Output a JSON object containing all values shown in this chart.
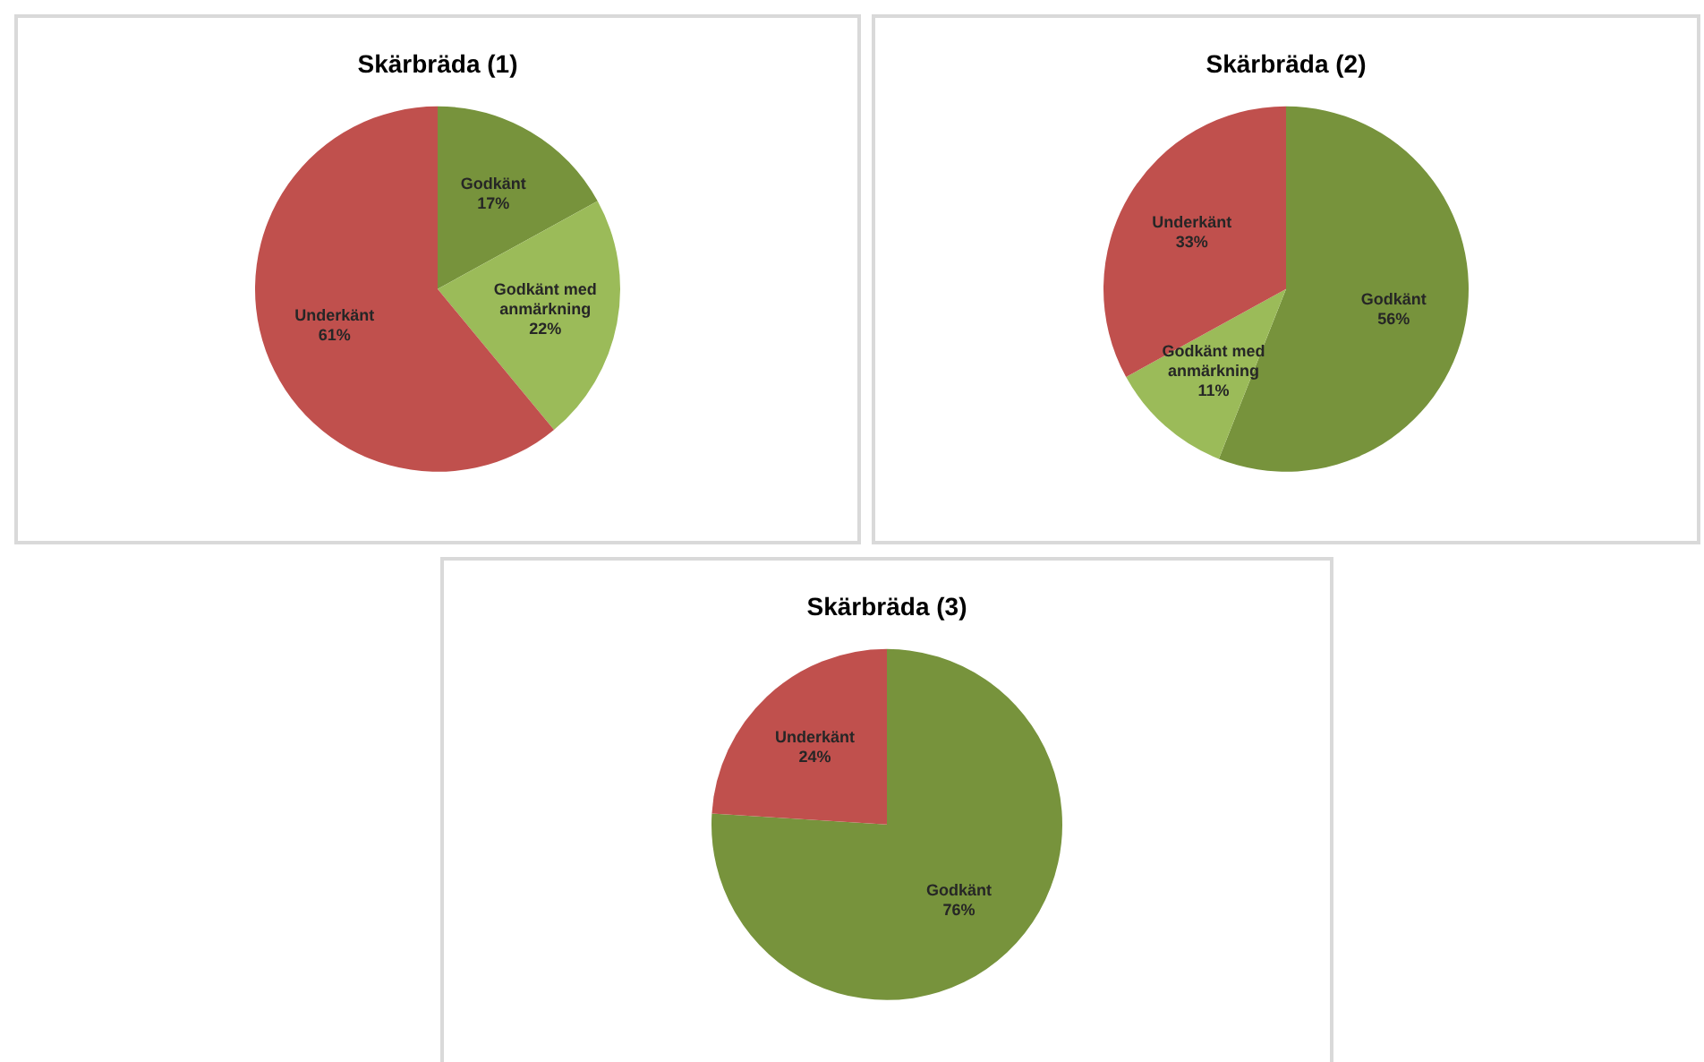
{
  "chart_data": [
    {
      "type": "pie",
      "title": "Skärbräda (1)",
      "categories": [
        "Godkänt",
        "Godkänt med anmärkning",
        "Underkänt"
      ],
      "values": [
        17,
        22,
        61
      ],
      "colors": [
        "#77933c",
        "#9bbb59",
        "#c0504d"
      ],
      "value_labels": [
        "17%",
        "22%",
        "61%"
      ]
    },
    {
      "type": "pie",
      "title": "Skärbräda (2)",
      "categories": [
        "Godkänt",
        "Godkänt med anmärkning",
        "Underkänt"
      ],
      "values": [
        56,
        11,
        33
      ],
      "colors": [
        "#77933c",
        "#9bbb59",
        "#c0504d"
      ],
      "value_labels": [
        "56%",
        "11%",
        "33%"
      ]
    },
    {
      "type": "pie",
      "title": "Skärbräda (3)",
      "categories": [
        "Godkänt",
        "Underkänt"
      ],
      "values": [
        76,
        24
      ],
      "colors": [
        "#77933c",
        "#c0504d"
      ],
      "value_labels": [
        "76%",
        "24%"
      ]
    }
  ]
}
